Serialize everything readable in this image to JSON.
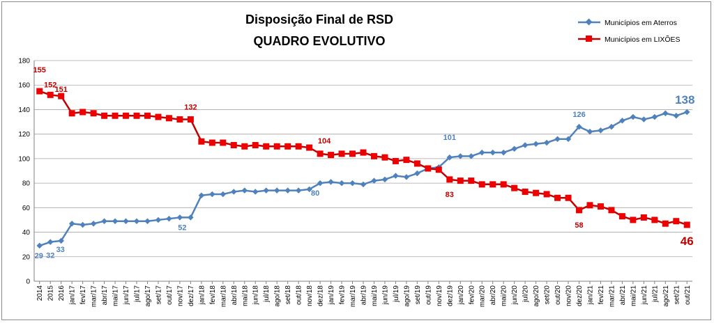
{
  "chart_data": {
    "type": "line",
    "title": "Disposição Final de RSD",
    "subtitle": "QUADRO EVOLUTIVO",
    "ylim": [
      0,
      180
    ],
    "yticks": [
      0,
      20,
      40,
      60,
      80,
      100,
      120,
      140,
      160,
      180
    ],
    "grid": true,
    "legend_position": "top-right",
    "categories": [
      "2014",
      "2015",
      "2016",
      "jan/17",
      "fev/17",
      "mar/17",
      "abr/17",
      "mai/17",
      "jun/17",
      "jul/17",
      "ago/17",
      "set/17",
      "out/17",
      "nov/17",
      "dez/17",
      "jan/18",
      "fev/18",
      "mar/18",
      "abr/18",
      "mai/18",
      "jun/18",
      "jul/18",
      "ago/18",
      "set/18",
      "out/18",
      "nov/18",
      "dez/18",
      "jan/19",
      "fev/19",
      "mar/19",
      "abr/19",
      "mai/19",
      "jun/19",
      "jul/19",
      "ago/19",
      "set/19",
      "out/19",
      "nov/19",
      "dez/19",
      "jan/20",
      "fev/20",
      "mar/20",
      "abr/20",
      "mai/20",
      "jun/20",
      "jul/20",
      "ago/20",
      "set/20",
      "out/20",
      "nov/20",
      "dez/20",
      "jan/21",
      "fev/21",
      "mar/21",
      "abr/21",
      "mai/21",
      "jun/21",
      "jul/21",
      "ago/21",
      "set/21",
      "out/21"
    ],
    "series": [
      {
        "name": "Municípios em Aterros",
        "color": "#4f81bd",
        "marker": "diamond",
        "values": [
          29,
          32,
          33,
          47,
          46,
          47,
          49,
          49,
          49,
          49,
          49,
          50,
          51,
          52,
          52,
          70,
          71,
          71,
          73,
          74,
          73,
          74,
          74,
          74,
          74,
          75,
          80,
          81,
          80,
          80,
          79,
          82,
          83,
          86,
          85,
          88,
          92,
          93,
          101,
          102,
          102,
          105,
          105,
          105,
          108,
          111,
          112,
          113,
          116,
          116,
          126,
          122,
          123,
          126,
          131,
          134,
          132,
          134,
          137,
          135,
          138
        ],
        "labels": [
          {
            "index": 0,
            "text": "29"
          },
          {
            "index": 1,
            "text": "32"
          },
          {
            "index": 2,
            "text": "33"
          },
          {
            "index": 14,
            "text": "52"
          },
          {
            "index": 26,
            "text": "80"
          },
          {
            "index": 38,
            "text": "101"
          },
          {
            "index": 50,
            "text": "126"
          },
          {
            "index": 60,
            "text": "138"
          }
        ]
      },
      {
        "name": "Municípios em LIXÕES",
        "color": "#c00000",
        "marker": "square",
        "values": [
          155,
          152,
          151,
          137,
          138,
          137,
          135,
          135,
          135,
          135,
          135,
          134,
          133,
          132,
          132,
          114,
          113,
          113,
          111,
          110,
          111,
          110,
          110,
          110,
          110,
          109,
          104,
          103,
          104,
          104,
          105,
          102,
          101,
          98,
          99,
          96,
          92,
          91,
          83,
          82,
          82,
          79,
          79,
          79,
          76,
          73,
          72,
          71,
          68,
          68,
          58,
          62,
          61,
          58,
          53,
          50,
          52,
          50,
          47,
          49,
          46
        ],
        "labels": [
          {
            "index": 0,
            "text": "155"
          },
          {
            "index": 1,
            "text": "152"
          },
          {
            "index": 2,
            "text": "151"
          },
          {
            "index": 14,
            "text": "132"
          },
          {
            "index": 26,
            "text": "104"
          },
          {
            "index": 38,
            "text": "83"
          },
          {
            "index": 50,
            "text": "58"
          },
          {
            "index": 60,
            "text": "46"
          }
        ]
      }
    ]
  }
}
